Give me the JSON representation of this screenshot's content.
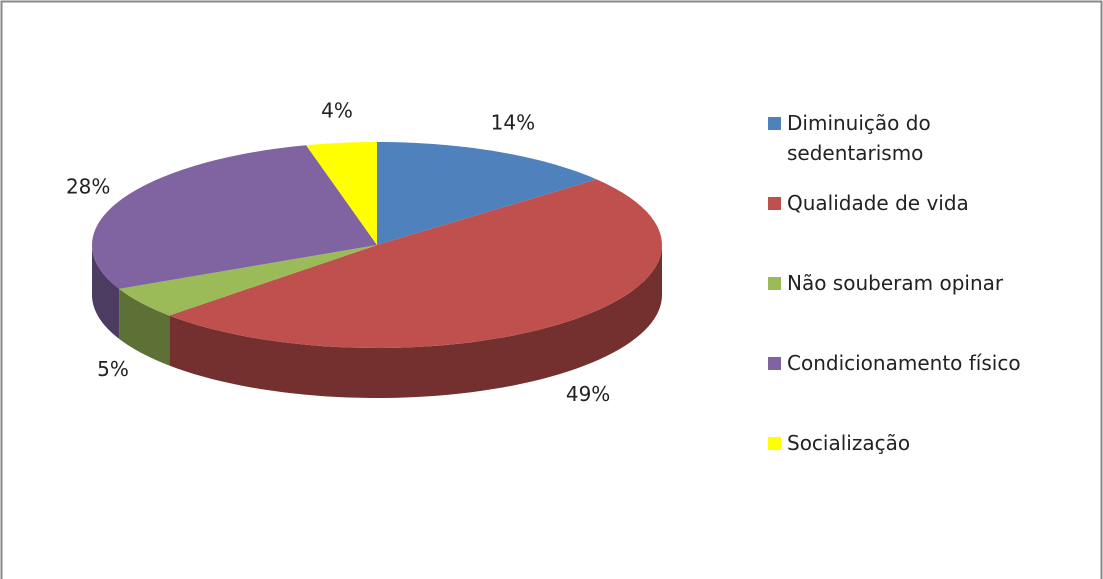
{
  "chart_data": {
    "type": "pie",
    "categories": [
      "Diminuição do sedentarismo",
      "Qualidade de vida",
      "Não souberam opinar",
      "Condicionamento físico",
      "Socialização"
    ],
    "values": [
      14,
      49,
      5,
      28,
      4
    ],
    "value_labels": [
      "14%",
      "49%",
      "5%",
      "28%",
      "4%"
    ],
    "colors": [
      "#4f81bd",
      "#c0504d",
      "#9bbb59",
      "#8064a2",
      "#ffff00"
    ],
    "legend": "right"
  }
}
